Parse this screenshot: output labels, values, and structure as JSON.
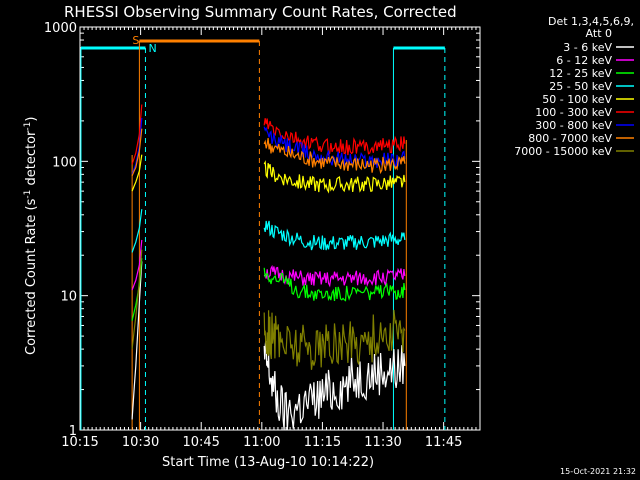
{
  "chart_data": {
    "type": "line",
    "title": "RHESSI Observing Summary Count Rates, Corrected",
    "xlabel": "Start Time (13-Aug-10 10:14:22)",
    "ylabel": "Corrected Count Rate (s",
    "ylabel_sup1": "-1",
    "ylabel_mid": " detector",
    "ylabel_sup2": "-1",
    "ylabel_end": ")",
    "yscale": "log",
    "ylim": [
      1,
      1000
    ],
    "xlim_minutes": [
      10.25,
      11.9
    ],
    "x_ticks": [
      {
        "label": "10:15",
        "t": 10.25
      },
      {
        "label": "10:30",
        "t": 10.5
      },
      {
        "label": "10:45",
        "t": 10.75
      },
      {
        "label": "11:00",
        "t": 11.0
      },
      {
        "label": "11:15",
        "t": 11.25
      },
      {
        "label": "11:30",
        "t": 11.5
      },
      {
        "label": "11:45",
        "t": 11.75
      }
    ],
    "y_ticks": [
      {
        "label": "1",
        "v": 1
      },
      {
        "label": "10",
        "v": 10
      },
      {
        "label": "100",
        "v": 100
      },
      {
        "label": "1000",
        "v": 1000
      }
    ],
    "legend_header": [
      "Det 1,3,4,5,6,9,",
      "Att 0"
    ],
    "series": [
      {
        "name": "3 - 6 keV",
        "color": "#ffffff",
        "seg1": [
          [
            10.465,
            1.2
          ],
          [
            10.48,
            3.0
          ],
          [
            10.495,
            9.0
          ],
          [
            10.505,
            18.0
          ]
        ],
        "seg2": [
          [
            11.01,
            3.5
          ],
          [
            11.03,
            2.8
          ],
          [
            11.06,
            1.7
          ],
          [
            11.1,
            1.3
          ],
          [
            11.15,
            1.5
          ],
          [
            11.2,
            1.6
          ],
          [
            11.25,
            1.8
          ],
          [
            11.3,
            2.0
          ],
          [
            11.35,
            2.2
          ],
          [
            11.4,
            2.5
          ],
          [
            11.45,
            2.6
          ],
          [
            11.5,
            2.8
          ],
          [
            11.55,
            2.8
          ],
          [
            11.59,
            3.0
          ]
        ]
      },
      {
        "name": "6 - 12 keV",
        "color": "#ff00ff",
        "seg1": [
          [
            10.465,
            11.0
          ],
          [
            10.48,
            13.0
          ],
          [
            10.495,
            17.0
          ],
          [
            10.505,
            26.0
          ]
        ],
        "seg2": [
          [
            11.01,
            15.0
          ],
          [
            11.05,
            14.5
          ],
          [
            11.1,
            14.0
          ],
          [
            11.15,
            13.5
          ],
          [
            11.2,
            13.2
          ],
          [
            11.25,
            13.2
          ],
          [
            11.3,
            13.3
          ],
          [
            11.35,
            13.3
          ],
          [
            11.4,
            13.4
          ],
          [
            11.45,
            13.5
          ],
          [
            11.5,
            13.7
          ],
          [
            11.55,
            13.8
          ],
          [
            11.59,
            14.0
          ]
        ]
      },
      {
        "name": "12 - 25 keV",
        "color": "#00ff00",
        "seg1": [
          [
            10.465,
            6.5
          ],
          [
            10.48,
            8.5
          ],
          [
            10.495,
            12.0
          ],
          [
            10.505,
            19.0
          ]
        ],
        "seg2": [
          [
            11.01,
            15.0
          ],
          [
            11.05,
            13.5
          ],
          [
            11.1,
            12.5
          ],
          [
            11.15,
            11.0
          ],
          [
            11.2,
            10.5
          ],
          [
            11.25,
            10.2
          ],
          [
            11.3,
            10.3
          ],
          [
            11.35,
            10.4
          ],
          [
            11.4,
            10.5
          ],
          [
            11.45,
            10.5
          ],
          [
            11.5,
            10.5
          ],
          [
            11.55,
            10.8
          ],
          [
            11.59,
            11.0
          ]
        ]
      },
      {
        "name": "25 - 50 keV",
        "color": "#00ffff",
        "seg1": [
          [
            10.465,
            21.0
          ],
          [
            10.48,
            25.0
          ],
          [
            10.495,
            32.0
          ],
          [
            10.505,
            44.0
          ]
        ],
        "seg2": [
          [
            11.01,
            34.0
          ],
          [
            11.05,
            30.0
          ],
          [
            11.1,
            28.0
          ],
          [
            11.15,
            26.0
          ],
          [
            11.2,
            25.0
          ],
          [
            11.25,
            24.5
          ],
          [
            11.3,
            24.5
          ],
          [
            11.35,
            24.5
          ],
          [
            11.4,
            25.0
          ],
          [
            11.45,
            25.0
          ],
          [
            11.5,
            25.5
          ],
          [
            11.55,
            26.0
          ],
          [
            11.59,
            26.0
          ]
        ]
      },
      {
        "name": "50 - 100 keV",
        "color": "#ffff00",
        "seg1": [
          [
            10.465,
            60.0
          ],
          [
            10.48,
            70.0
          ],
          [
            10.495,
            85.0
          ],
          [
            10.505,
            112.0
          ]
        ],
        "seg2": [
          [
            11.01,
            88.0
          ],
          [
            11.05,
            80.0
          ],
          [
            11.1,
            75.0
          ],
          [
            11.15,
            70.0
          ],
          [
            11.2,
            68.0
          ],
          [
            11.25,
            67.0
          ],
          [
            11.3,
            67.0
          ],
          [
            11.35,
            67.0
          ],
          [
            11.4,
            67.0
          ],
          [
            11.45,
            68.0
          ],
          [
            11.5,
            68.0
          ],
          [
            11.55,
            69.0
          ],
          [
            11.59,
            70.0
          ]
        ]
      },
      {
        "name": "100 - 300 keV",
        "color": "#ff0000",
        "seg1": [
          [
            10.465,
            95.0
          ],
          [
            10.48,
            115.0
          ],
          [
            10.495,
            160.0
          ],
          [
            10.505,
            265.0
          ]
        ],
        "seg2": [
          [
            11.01,
            195.0
          ],
          [
            11.05,
            170.0
          ],
          [
            11.1,
            155.0
          ],
          [
            11.15,
            142.0
          ],
          [
            11.2,
            135.0
          ],
          [
            11.25,
            130.0
          ],
          [
            11.3,
            128.0
          ],
          [
            11.35,
            127.0
          ],
          [
            11.4,
            128.0
          ],
          [
            11.45,
            130.0
          ],
          [
            11.5,
            132.0
          ],
          [
            11.55,
            133.0
          ],
          [
            11.59,
            135.0
          ]
        ]
      },
      {
        "name": "300 - 800 keV",
        "color": "#0000ff",
        "seg1": [
          [
            10.465,
            80.0
          ],
          [
            10.48,
            95.0
          ],
          [
            10.495,
            130.0
          ],
          [
            10.505,
            210.0
          ]
        ],
        "seg2": [
          [
            11.01,
            165.0
          ],
          [
            11.05,
            145.0
          ],
          [
            11.1,
            132.0
          ],
          [
            11.15,
            122.0
          ],
          [
            11.2,
            114.0
          ],
          [
            11.25,
            108.0
          ],
          [
            11.3,
            105.0
          ],
          [
            11.35,
            103.0
          ],
          [
            11.4,
            102.0
          ],
          [
            11.45,
            102.0
          ],
          [
            11.5,
            103.0
          ],
          [
            11.55,
            103.0
          ],
          [
            11.59,
            104.0
          ]
        ]
      },
      {
        "name": "800 - 7000 keV",
        "color": "#ff8000",
        "seg1": [
          [
            10.465,
            78.0
          ],
          [
            10.48,
            90.0
          ],
          [
            10.495,
            120.0
          ],
          [
            10.505,
            175.0
          ]
        ],
        "seg2": [
          [
            11.01,
            140.0
          ],
          [
            11.05,
            125.0
          ],
          [
            11.1,
            115.0
          ],
          [
            11.15,
            108.0
          ],
          [
            11.2,
            103.0
          ],
          [
            11.25,
            98.0
          ],
          [
            11.3,
            96.0
          ],
          [
            11.35,
            95.0
          ],
          [
            11.4,
            94.0
          ],
          [
            11.45,
            94.0
          ],
          [
            11.5,
            94.0
          ],
          [
            11.55,
            95.0
          ],
          [
            11.59,
            96.0
          ]
        ]
      },
      {
        "name": "7000 - 15000 keV",
        "color": "#808000",
        "seg1": [
          [
            10.465,
            4.0
          ],
          [
            10.48,
            7.0
          ],
          [
            10.495,
            13.0
          ],
          [
            10.505,
            22.0
          ]
        ],
        "seg2": [
          [
            11.01,
            5.5
          ],
          [
            11.03,
            5.2
          ],
          [
            11.06,
            4.8
          ],
          [
            11.1,
            4.5
          ],
          [
            11.15,
            4.3
          ],
          [
            11.2,
            4.2
          ],
          [
            11.25,
            4.2
          ],
          [
            11.3,
            4.3
          ],
          [
            11.35,
            4.4
          ],
          [
            11.4,
            4.6
          ],
          [
            11.45,
            4.8
          ],
          [
            11.5,
            5.0
          ],
          [
            11.55,
            5.3
          ],
          [
            11.59,
            5.5
          ]
        ]
      }
    ],
    "annotations": {
      "saa_label": "S",
      "night_label": "N",
      "saa_start": 10.495,
      "saa_end": 10.99,
      "night_start_1": 10.254,
      "night_end_1": 10.52,
      "night_start_2": 11.543,
      "night_end_2": 11.755,
      "range_start": 10.465,
      "range_end": 11.596,
      "colors": {
        "saa": "#ff8000",
        "night": "#00ffff"
      }
    },
    "timestamp": "15-Oct-2021 21:32"
  }
}
